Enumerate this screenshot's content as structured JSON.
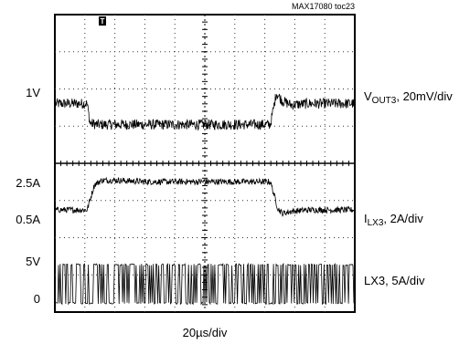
{
  "chart_data": {
    "type": "line",
    "caption": "MAX17080 toc23",
    "trigger_marker": "T",
    "xlabel": "20µs/div",
    "grid": true,
    "grid_divisions": {
      "x": 10,
      "y": 8
    },
    "trace_color": "#000000",
    "series": [
      {
        "channel_label": {
          "main": "V",
          "sub": "OUT3",
          "rest": ", 20mV/div"
        },
        "level_labels": [
          {
            "text": "1V",
            "value": 1.0
          }
        ],
        "scale_per_div": "20mV/div",
        "ylim": [
          0.92,
          1.08
        ],
        "points_x_div": [
          0,
          1.05,
          1.15,
          1.4,
          2,
          3,
          4,
          5,
          6,
          7.2,
          7.4,
          7.6,
          7.9,
          8.5,
          10
        ],
        "points_y": [
          1.0,
          1.0,
          0.97,
          0.968,
          0.968,
          0.968,
          0.968,
          0.968,
          0.968,
          0.968,
          1.016,
          1.004,
          0.998,
          1.0,
          1.0
        ],
        "noise": 0.008
      },
      {
        "channel_label": {
          "main": "I",
          "sub": "LX3",
          "rest": ", 2A/div"
        },
        "level_labels": [
          {
            "text": "2.5A",
            "value": 2.5
          },
          {
            "text": "0.5A",
            "value": 0.5
          }
        ],
        "scale_per_div": "2A/div",
        "ylim": [
          -2.8,
          4.0
        ],
        "points_x_div": [
          0,
          1.05,
          1.3,
          1.55,
          2,
          3,
          4,
          5,
          6,
          7.2,
          7.45,
          7.6,
          7.9,
          8.5,
          10
        ],
        "points_y": [
          0.5,
          0.5,
          2.3,
          2.6,
          2.6,
          2.5,
          2.5,
          2.5,
          2.5,
          2.5,
          0.6,
          0.25,
          0.4,
          0.5,
          0.5
        ],
        "noise": 0.22
      },
      {
        "channel_label": {
          "main": "LX3, 5A/div",
          "sub": "",
          "rest": ""
        },
        "level_labels": [
          {
            "text": "5V",
            "value": 5
          },
          {
            "text": "0",
            "value": 0
          }
        ],
        "scale_per_div": "5A/div",
        "ylim": [
          -0.2,
          6.2
        ],
        "waveform": "switching",
        "low": 0,
        "high": 5
      }
    ]
  }
}
